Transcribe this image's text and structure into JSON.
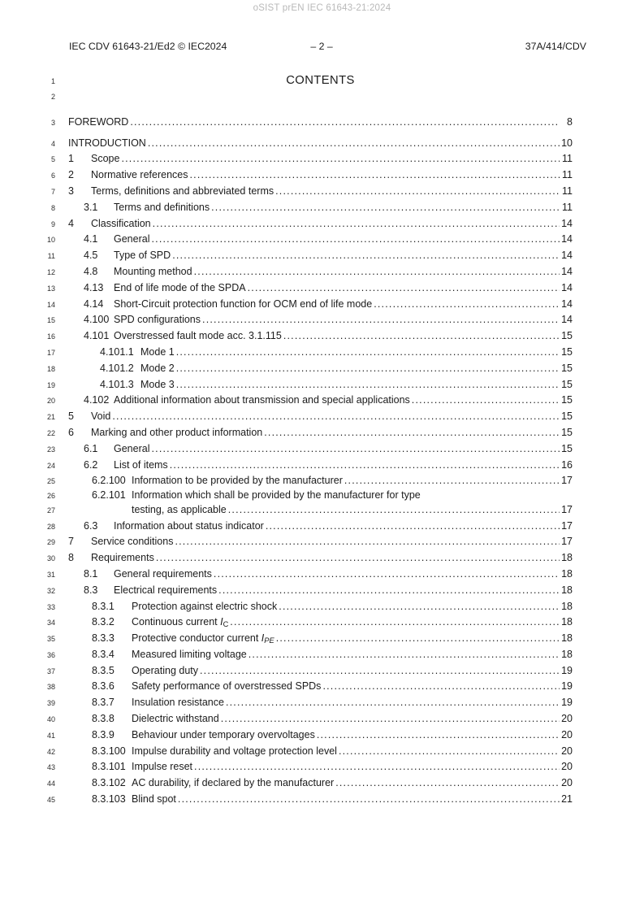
{
  "watermark": "oSIST prEN IEC 61643-21:2024",
  "header": {
    "left": "IEC CDV 61643-21/Ed2 © IEC2024",
    "center": "– 2 –",
    "right": "37A/414/CDV"
  },
  "title": "CONTENTS",
  "toc": {
    "rows": [
      {
        "line": "1",
        "type": "title"
      },
      {
        "line": "2",
        "type": "blank"
      },
      {
        "line": "3",
        "level": 0,
        "num": "",
        "title": "FOREWORD",
        "page": "8"
      },
      {
        "line": "4",
        "level": 0,
        "num": "",
        "title": "INTRODUCTION",
        "page": "10"
      },
      {
        "line": "5",
        "level": 1,
        "num": "1",
        "title": "Scope",
        "page": "11"
      },
      {
        "line": "6",
        "level": 1,
        "num": "2",
        "title": "Normative references",
        "page": "11"
      },
      {
        "line": "7",
        "level": 1,
        "num": "3",
        "title": "Terms, definitions and abbreviated terms",
        "page": "11"
      },
      {
        "line": "8",
        "level": 2,
        "num": "3.1",
        "title": "Terms and definitions",
        "page": "11"
      },
      {
        "line": "9",
        "level": 1,
        "num": "4",
        "title": "Classification",
        "page": "14"
      },
      {
        "line": "10",
        "level": 2,
        "num": "4.1",
        "title": "General",
        "page": "14"
      },
      {
        "line": "11",
        "level": 2,
        "num": "4.5",
        "title": "Type of SPD",
        "page": "14"
      },
      {
        "line": "12",
        "level": 2,
        "num": "4.8",
        "title": "Mounting method",
        "page": "14"
      },
      {
        "line": "13",
        "level": 2,
        "num": "4.13",
        "title": "End of life mode of the SPDA",
        "page": "14"
      },
      {
        "line": "14",
        "level": 2,
        "num": "4.14",
        "title": "Short-Circuit protection function for OCM end of life mode",
        "page": "14"
      },
      {
        "line": "15",
        "level": 2,
        "num": "4.100",
        "title": "SPD configurations",
        "page": "14"
      },
      {
        "line": "16",
        "level": 2,
        "num": "4.101",
        "title": "Overstressed fault mode acc. 3.1.115",
        "page": "15"
      },
      {
        "line": "17",
        "level": 4,
        "num": "4.101.1",
        "title": "Mode 1",
        "page": "15"
      },
      {
        "line": "18",
        "level": 4,
        "num": "4.101.2",
        "title": "Mode 2",
        "page": "15"
      },
      {
        "line": "19",
        "level": 4,
        "num": "4.101.3",
        "title": "Mode 3",
        "page": "15"
      },
      {
        "line": "20",
        "level": 2,
        "num": "4.102",
        "title": "Additional information about transmission and special applications",
        "page": "15"
      },
      {
        "line": "21",
        "level": 1,
        "num": "5",
        "title": "Void",
        "page": "15"
      },
      {
        "line": "22",
        "level": 1,
        "num": "6",
        "title": "Marking and other product information",
        "page": "15"
      },
      {
        "line": "23",
        "level": 2,
        "num": "6.1",
        "title": "General",
        "page": "15"
      },
      {
        "line": "24",
        "level": 2,
        "num": "6.2",
        "title": "List of items",
        "page": "16"
      },
      {
        "line": "25",
        "level": 3,
        "num": "6.2.100",
        "title": "Information to be provided by the manufacturer",
        "page": "17"
      },
      {
        "line": "26",
        "level": 3,
        "num": "6.2.101",
        "title": "Information which shall be provided by the manufacturer for type",
        "page": ""
      },
      {
        "line": "27",
        "level": 3,
        "num": "",
        "title": "testing, as applicable",
        "page": "17",
        "continuation": true
      },
      {
        "line": "28",
        "level": 2,
        "num": "6.3",
        "title": "Information about status indicator",
        "page": "17"
      },
      {
        "line": "29",
        "level": 1,
        "num": "7",
        "title": "Service conditions",
        "page": "17"
      },
      {
        "line": "30",
        "level": 1,
        "num": "8",
        "title": "Requirements",
        "page": "18"
      },
      {
        "line": "31",
        "level": 2,
        "num": "8.1",
        "title": "General requirements",
        "page": "18"
      },
      {
        "line": "32",
        "level": 2,
        "num": "8.3",
        "title": "Electrical requirements",
        "page": "18"
      },
      {
        "line": "33",
        "level": 3,
        "num": "8.3.1",
        "title": "Protection against electric shock",
        "page": "18"
      },
      {
        "line": "34",
        "level": 3,
        "num": "8.3.2",
        "title": [
          {
            "t": "Continuous current "
          },
          {
            "t": "I",
            "i": true
          },
          {
            "t": "C",
            "s": true
          }
        ],
        "page": "18"
      },
      {
        "line": "35",
        "level": 3,
        "num": "8.3.3",
        "title": [
          {
            "t": "Protective conductor current "
          },
          {
            "t": "I",
            "i": true
          },
          {
            "t": "PE",
            "s": true,
            "i": true
          }
        ],
        "page": "18"
      },
      {
        "line": "36",
        "level": 3,
        "num": "8.3.4",
        "title": "Measured limiting voltage",
        "page": "18"
      },
      {
        "line": "37",
        "level": 3,
        "num": "8.3.5",
        "title": "Operating duty",
        "page": "19"
      },
      {
        "line": "38",
        "level": 3,
        "num": "8.3.6",
        "title": "Safety performance of overstressed SPDs",
        "page": "19"
      },
      {
        "line": "39",
        "level": 3,
        "num": "8.3.7",
        "title": "Insulation resistance",
        "page": "19"
      },
      {
        "line": "40",
        "level": 3,
        "num": "8.3.8",
        "title": "Dielectric withstand",
        "page": "20"
      },
      {
        "line": "41",
        "level": 3,
        "num": "8.3.9",
        "title": "Behaviour under temporary overvoltages",
        "page": "20"
      },
      {
        "line": "42",
        "level": 3,
        "num": "8.3.100",
        "title": "Impulse durability and voltage protection level",
        "page": "20"
      },
      {
        "line": "43",
        "level": 3,
        "num": "8.3.101",
        "title": "Impulse reset",
        "page": "20"
      },
      {
        "line": "44",
        "level": 3,
        "num": "8.3.102",
        "title": "AC durability, if declared by the manufacturer",
        "page": "20"
      },
      {
        "line": "45",
        "level": 3,
        "num": "8.3.103",
        "title": "Blind spot",
        "page": "21"
      }
    ]
  }
}
